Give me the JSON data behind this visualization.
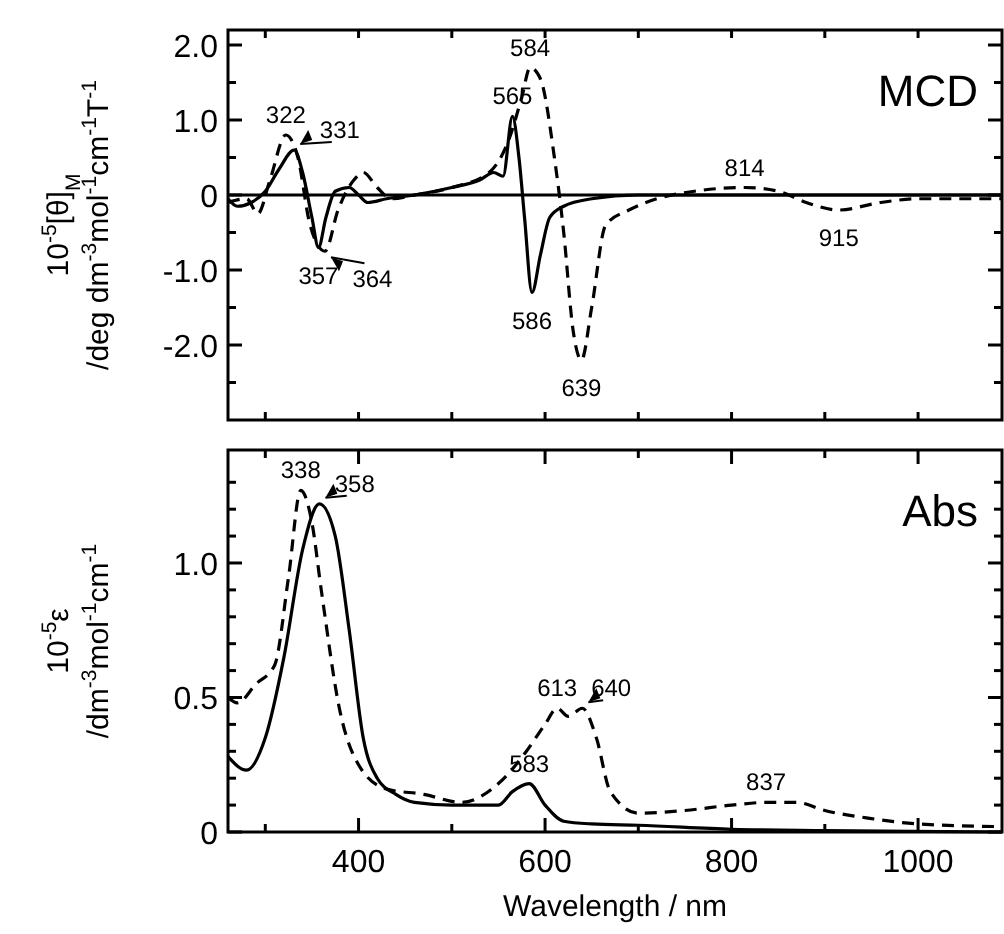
{
  "chart_data": [
    {
      "type": "line",
      "title": "MCD",
      "ylabel": "10$^{-5}$[θ]$_{M}$\n/deg dm$^{-3}$mol$^{-1}$cm$^{-1}$T$^{-1}$",
      "xlim": [
        260,
        1090
      ],
      "xticks": [
        {
          "value": 300,
          "label": null
        },
        {
          "value": 400,
          "label": null
        },
        {
          "value": 500,
          "label": null
        },
        {
          "value": 600,
          "label": null
        },
        {
          "value": 700,
          "label": null
        },
        {
          "value": 800,
          "label": null
        },
        {
          "value": 900,
          "label": null
        },
        {
          "value": 1000,
          "label": null
        }
      ],
      "ylim": [
        -3.0,
        2.2
      ],
      "yticks": [
        {
          "value": -2.5,
          "label": null
        },
        {
          "value": -2.0,
          "label": "-2.0"
        },
        {
          "value": -1.5,
          "label": null
        },
        {
          "value": -1.0,
          "label": "-1.0"
        },
        {
          "value": -0.5,
          "label": null
        },
        0,
        {
          "value": 0.5,
          "label": null
        },
        {
          "value": 1.0,
          "label": "1.0"
        },
        {
          "value": 1.5,
          "label": null
        },
        {
          "value": 2.0,
          "label": "2.0"
        }
      ],
      "tick_labels": "y",
      "grid": false,
      "ref_lines": [
        {
          "axis": "y",
          "value": 0,
          "color": "#000000"
        }
      ],
      "series": [
        {
          "color": "#000000",
          "line_style": "solid",
          "x": [
            260,
            270,
            285,
            300,
            315,
            331,
            340,
            350,
            357,
            365,
            375,
            390,
            400,
            410,
            430,
            460,
            500,
            530,
            545,
            555,
            565,
            572,
            578,
            586,
            595,
            605,
            620,
            650,
            700,
            800,
            900,
            1090
          ],
          "values": [
            -0.05,
            -0.15,
            -0.1,
            0.05,
            0.35,
            0.6,
            0.3,
            -0.3,
            -0.7,
            -0.3,
            0.05,
            0.1,
            0.0,
            -0.1,
            -0.05,
            0,
            0.1,
            0.2,
            0.3,
            0.25,
            1.05,
            0.5,
            -0.3,
            -1.3,
            -0.8,
            -0.3,
            -0.15,
            -0.05,
            0,
            0,
            0,
            0
          ]
        },
        {
          "color": "#000000",
          "line_style": "dashed",
          "x": [
            260,
            280,
            292,
            305,
            322,
            335,
            348,
            364,
            378,
            395,
            405,
            420,
            435,
            460,
            500,
            540,
            560,
            575,
            584,
            595,
            610,
            620,
            630,
            639,
            650,
            665,
            690,
            720,
            760,
            814,
            850,
            880,
            915,
            960,
            1000,
            1090
          ],
          "values": [
            -0.1,
            -0.05,
            -0.25,
            0.2,
            0.8,
            0.5,
            -0.4,
            -0.75,
            -0.2,
            0.2,
            0.3,
            0.1,
            -0.05,
            0,
            0.1,
            0.3,
            0.7,
            1.3,
            1.7,
            1.55,
            0.5,
            -0.5,
            -1.8,
            -2.2,
            -1.5,
            -0.4,
            -0.2,
            -0.05,
            0.05,
            0.1,
            0.05,
            -0.1,
            -0.2,
            -0.1,
            -0.05,
            -0.05
          ]
        }
      ],
      "annotations": [
        {
          "text": "322",
          "x": 322,
          "y": 0.8
        },
        {
          "text": "331",
          "x": 331,
          "y": 0.6
        },
        {
          "text": "357",
          "x": 357,
          "y": -0.7
        },
        {
          "text": "364",
          "x": 364,
          "y": -0.75
        },
        {
          "text": "565",
          "x": 565,
          "y": 1.05
        },
        {
          "text": "584",
          "x": 584,
          "y": 1.7
        },
        {
          "text": "586",
          "x": 586,
          "y": -1.3
        },
        {
          "text": "639",
          "x": 639,
          "y": -2.2
        },
        {
          "text": "814",
          "x": 814,
          "y": 0.1
        },
        {
          "text": "915",
          "x": 915,
          "y": -0.2
        }
      ]
    },
    {
      "type": "line",
      "title": "Abs",
      "xlabel": "Wavelength  / nm",
      "ylabel": "10$^{-5}$ε\n/dm$^{-3}$mol$^{-1}$cm$^{-1}$",
      "xlim": [
        260,
        1090
      ],
      "xticks": [
        {
          "value": 300,
          "label": null
        },
        400,
        {
          "value": 500,
          "label": null
        },
        600,
        {
          "value": 700,
          "label": null
        },
        800,
        {
          "value": 900,
          "label": null
        },
        1000
      ],
      "ylim": [
        0,
        1.42
      ],
      "yticks": [
        0,
        {
          "value": 0.1,
          "label": null
        },
        {
          "value": 0.2,
          "label": null
        },
        {
          "value": 0.3,
          "label": null
        },
        {
          "value": 0.4,
          "label": null
        },
        {
          "value": 0.5,
          "label": "0.5"
        },
        {
          "value": 0.6,
          "label": null
        },
        {
          "value": 0.7,
          "label": null
        },
        {
          "value": 0.8,
          "label": null
        },
        {
          "value": 0.9,
          "label": null
        },
        {
          "value": 1.0,
          "label": "1.0"
        },
        {
          "value": 1.1,
          "label": null
        },
        {
          "value": 1.2,
          "label": null
        },
        {
          "value": 1.3,
          "label": null
        }
      ],
      "grid": false,
      "series": [
        {
          "color": "#000000",
          "line_style": "solid",
          "x": [
            260,
            280,
            300,
            320,
            340,
            358,
            375,
            390,
            405,
            420,
            440,
            460,
            500,
            550,
            565,
            583,
            600,
            620,
            650,
            700,
            800,
            900,
            1090
          ],
          "values": [
            0.28,
            0.23,
            0.35,
            0.65,
            1.05,
            1.22,
            1.1,
            0.75,
            0.35,
            0.2,
            0.14,
            0.11,
            0.1,
            0.1,
            0.15,
            0.18,
            0.1,
            0.04,
            0.03,
            0.025,
            0.01,
            0.005,
            0
          ]
        },
        {
          "color": "#000000",
          "line_style": "dashed",
          "x": [
            260,
            270,
            290,
            310,
            325,
            338,
            350,
            360,
            380,
            400,
            430,
            470,
            510,
            550,
            580,
            600,
            613,
            625,
            640,
            655,
            670,
            700,
            750,
            800,
            837,
            870,
            900,
            950,
            1000,
            1090
          ],
          "values": [
            0.5,
            0.48,
            0.55,
            0.62,
            0.95,
            1.27,
            1.15,
            0.9,
            0.45,
            0.25,
            0.16,
            0.14,
            0.11,
            0.18,
            0.3,
            0.4,
            0.46,
            0.43,
            0.46,
            0.35,
            0.15,
            0.07,
            0.08,
            0.1,
            0.11,
            0.11,
            0.08,
            0.05,
            0.03,
            0.02
          ]
        }
      ],
      "annotations": [
        {
          "text": "338",
          "x": 338,
          "y": 1.27
        },
        {
          "text": "358",
          "x": 358,
          "y": 1.22
        },
        {
          "text": "613",
          "x": 613,
          "y": 0.46
        },
        {
          "text": "640",
          "x": 640,
          "y": 0.46
        },
        {
          "text": "583",
          "x": 583,
          "y": 0.18
        },
        {
          "text": "837",
          "x": 837,
          "y": 0.11
        }
      ]
    }
  ]
}
